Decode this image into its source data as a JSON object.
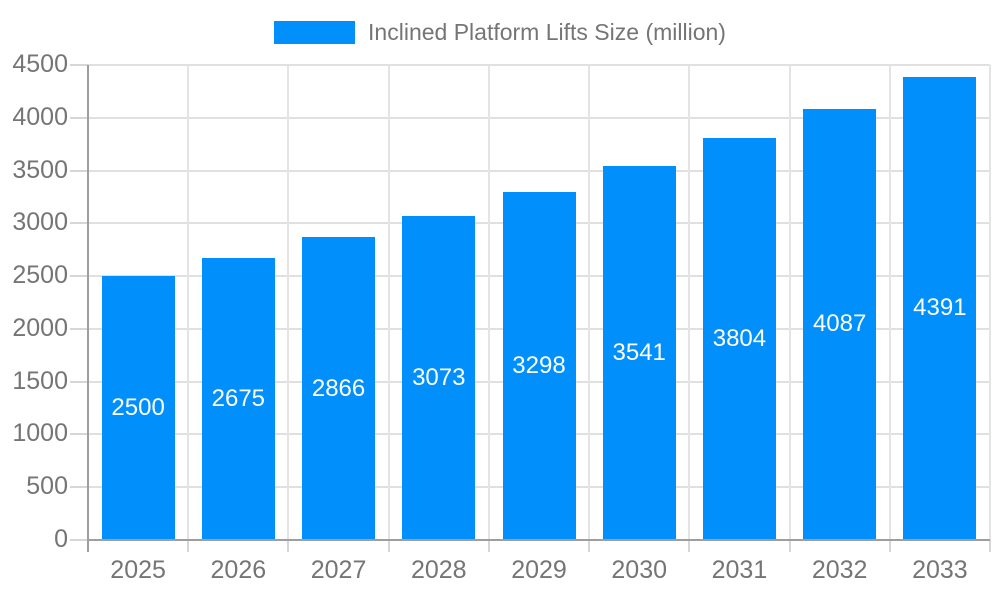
{
  "legend": {
    "label": "Inclined Platform Lifts Size (million)"
  },
  "chart_data": {
    "type": "bar",
    "title": "Inclined Platform Lifts Size (million)",
    "series_name": "Inclined Platform Lifts Size (million)",
    "categories": [
      "2025",
      "2026",
      "2027",
      "2028",
      "2029",
      "2030",
      "2031",
      "2032",
      "2033"
    ],
    "values": [
      2500,
      2675,
      2866,
      3073,
      3298,
      3541,
      3804,
      4087,
      4391
    ],
    "data_labels": [
      "2500",
      "2675",
      "2866",
      "3073",
      "3298",
      "3541",
      "3804",
      "4087",
      "4391"
    ],
    "xlabel": "",
    "ylabel": "",
    "ylim": [
      0,
      4500
    ],
    "ytick_step": 500,
    "ytick_labels": [
      "0",
      "500",
      "1000",
      "1500",
      "2000",
      "2500",
      "3000",
      "3500",
      "4000",
      "4500"
    ],
    "grid": true,
    "legend_position": "top",
    "colors": {
      "bar": "#008FFB",
      "bar_label_text": "#ffffff",
      "axis_text": "#757575",
      "gridline": "#e0e0e0",
      "axis_line": "#9e9e9e"
    }
  }
}
